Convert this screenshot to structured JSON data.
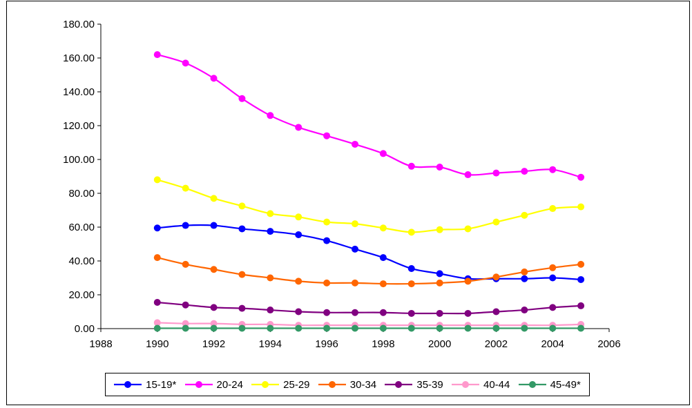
{
  "chart_data": {
    "type": "line",
    "title": "",
    "xlabel": "",
    "ylabel": "",
    "xlim": [
      1988,
      2006
    ],
    "ylim": [
      0,
      180
    ],
    "x_ticks": [
      "1988",
      "1990",
      "1992",
      "1994",
      "1996",
      "1998",
      "2000",
      "2002",
      "2004",
      "2006"
    ],
    "y_ticks": [
      "0.00",
      "20.00",
      "40.00",
      "60.00",
      "80.00",
      "100.00",
      "120.00",
      "140.00",
      "160.00",
      "180.00"
    ],
    "grid": false,
    "legend_position": "bottom",
    "x": [
      1990,
      1991,
      1992,
      1993,
      1994,
      1995,
      1996,
      1997,
      1998,
      1999,
      2000,
      2001,
      2002,
      2003,
      2004,
      2005
    ],
    "series": [
      {
        "name": "15-19*",
        "color": "#0000ff",
        "values": [
          59.5,
          61,
          61,
          59,
          57.5,
          55.5,
          52,
          47,
          42,
          35.5,
          32.5,
          29.5,
          29.5,
          29.5,
          30,
          29
        ]
      },
      {
        "name": "20-24",
        "color": "#ff00ff",
        "values": [
          162,
          157,
          148,
          136,
          126,
          119,
          114,
          109,
          103.5,
          96,
          95.5,
          91,
          92,
          93,
          94,
          89.5
        ]
      },
      {
        "name": "25-29",
        "color": "#ffff00",
        "values": [
          88,
          83,
          77,
          72.5,
          68,
          66,
          63,
          62,
          59.5,
          57,
          58.5,
          59,
          63,
          67,
          71,
          72
        ]
      },
      {
        "name": "30-34",
        "color": "#ff6600",
        "values": [
          42,
          38,
          35,
          32,
          30,
          28,
          27,
          27,
          26.5,
          26.5,
          27,
          28,
          30.5,
          33.5,
          36,
          38
        ]
      },
      {
        "name": "35-39",
        "color": "#800080",
        "values": [
          15.5,
          14,
          12.5,
          12,
          11,
          10,
          9.5,
          9.5,
          9.5,
          9,
          9,
          9,
          10,
          11,
          12.5,
          13.5
        ]
      },
      {
        "name": "40-44",
        "color": "#ff99cc",
        "values": [
          3.5,
          3,
          3,
          2.5,
          2.5,
          2,
          2,
          2,
          2,
          2,
          2,
          2,
          2,
          2,
          2,
          2.5
        ]
      },
      {
        "name": "45-49*",
        "color": "#339966",
        "values": [
          0.2,
          0.2,
          0.2,
          0.2,
          0.2,
          0.2,
          0.2,
          0.2,
          0.2,
          0.2,
          0.2,
          0.2,
          0.2,
          0.2,
          0.2,
          0.2
        ]
      }
    ]
  }
}
